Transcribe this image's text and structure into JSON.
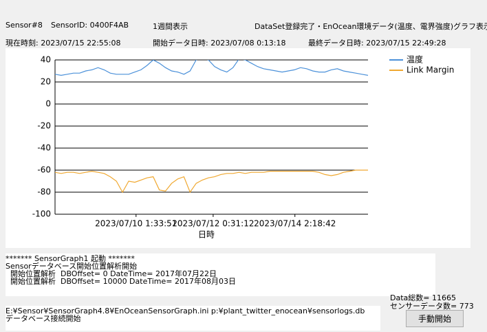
{
  "header": {
    "sensor": "Sensor#8",
    "sensor_id": "SensorID: 0400F4AB",
    "period": "1週間表示",
    "status": "DataSet登録完了・EnOcean環境データ(温度、電界強度)グラフ表示完",
    "now": "現在時刻: 2023/07/15 22:55:08",
    "start": "開始データ日時: 2023/07/08 0:13:18",
    "last": "最終データ日時: 2023/07/15 22:49:28"
  },
  "chart_data": {
    "type": "line",
    "xlabel": "日時",
    "xlim": [
      "2023/07/08 0:13:18",
      "2023/07/15 22:49:28"
    ],
    "xticks": [
      "2023/07/10 1:33:51",
      "2023/07/12 0:31:12",
      "2023/07/14 2:18:42"
    ],
    "ylim": [
      -100,
      40
    ],
    "yticks": [
      40,
      20,
      0,
      -20,
      -40,
      -60,
      -80,
      -100
    ],
    "grid": true,
    "legend": "top-right",
    "series": [
      {
        "name": "温度",
        "color": "#4a90d9",
        "values": [
          27,
          26,
          27,
          28,
          28,
          30,
          31,
          33,
          31,
          28,
          27,
          27,
          27,
          29,
          31,
          35,
          40,
          37,
          33,
          30,
          29,
          27,
          30,
          40,
          42,
          40,
          34,
          31,
          29,
          33,
          41,
          40,
          37,
          34,
          32,
          31,
          30,
          29,
          30,
          31,
          33,
          32,
          30,
          29,
          29,
          31,
          32,
          30,
          29,
          28,
          27,
          26
        ]
      },
      {
        "name": "Link Margin",
        "color": "#f0a830",
        "values": [
          -62,
          -63,
          -62,
          -62,
          -63,
          -62,
          -61,
          -62,
          -63,
          -66,
          -70,
          -80,
          -70,
          -71,
          -69,
          -67,
          -66,
          -78,
          -79,
          -72,
          -68,
          -66,
          -80,
          -72,
          -69,
          -67,
          -66,
          -64,
          -63,
          -63,
          -62,
          -63,
          -62,
          -62,
          -62,
          -61,
          -61,
          -61,
          -61,
          -61,
          -61,
          -61,
          -61,
          -62,
          -64,
          -65,
          -64,
          -62,
          -61,
          -60,
          -60,
          -60
        ]
      }
    ]
  },
  "log": {
    "lines": [
      "******* SensorGraph1 起動 *******",
      "Sensorデータベース開始位置解析開始",
      "  開始位置解析  DBOffset= 0 DateTime= 2017年07月22日",
      "  開始位置解析  DBOffset= 10000 DateTime= 2017年08月03日"
    ]
  },
  "stats": {
    "total": "Data総数= 11665",
    "sensor_count": "センサーデータ数= 773"
  },
  "log2": {
    "lines": [
      "E:¥Sensor¥SensorGraph4.8¥EnOceanSensorGraph.ini p:¥plant_twitter_enocean¥sensorlogs.db",
      "データベース接続開始"
    ]
  },
  "button": {
    "label": "手動開始"
  }
}
